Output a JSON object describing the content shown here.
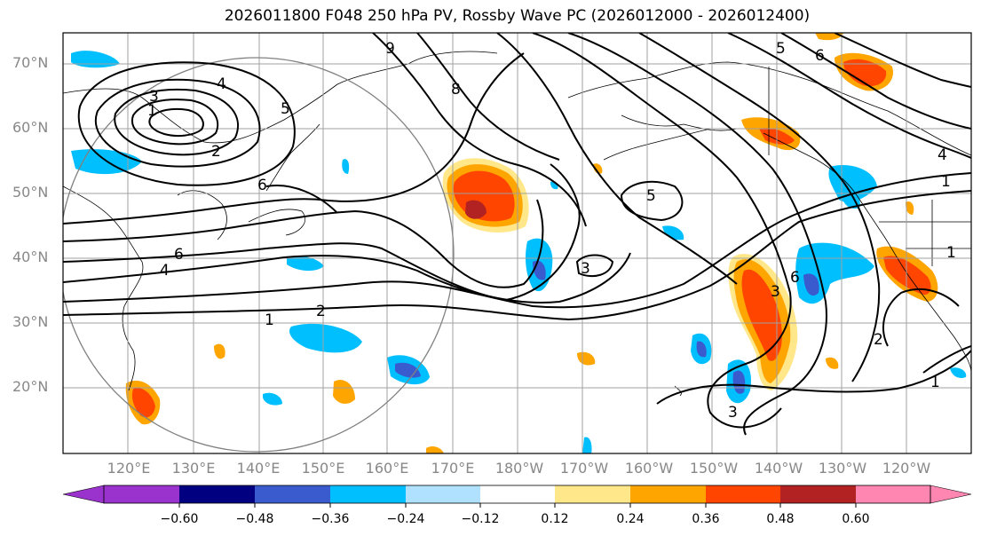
{
  "title": "2026011800 F048 250 hPa PV, Rossby Wave PC (2026012000 - 2026012400)",
  "lat_labels": [
    "70°N",
    "60°N",
    "50°N",
    "40°N",
    "30°N",
    "20°N"
  ],
  "lon_labels": [
    "120°E",
    "130°E",
    "140°E",
    "150°E",
    "160°E",
    "170°E",
    "180°W",
    "170°W",
    "160°W",
    "150°W",
    "140°W",
    "130°W",
    "120°W"
  ],
  "colorbar": {
    "ticks": [
      "−0.60",
      "−0.48",
      "−0.36",
      "−0.24",
      "−0.12",
      "0.12",
      "0.24",
      "0.36",
      "0.48",
      "0.60"
    ],
    "colors": [
      "#9a32cd",
      "#000080",
      "#3a5bcd",
      "#00bfff",
      "#b0e2ff",
      "#ffffff",
      "#ffe78a",
      "#ffa500",
      "#ff4500",
      "#b22222",
      "#ff86b0"
    ]
  },
  "contour_labels": [
    "1",
    "2",
    "3",
    "4",
    "5",
    "6",
    "8",
    "9"
  ],
  "colors": {
    "contour": "#000000",
    "grid": "#a0a0a0",
    "coast": "#000000",
    "circle": "#808080"
  }
}
